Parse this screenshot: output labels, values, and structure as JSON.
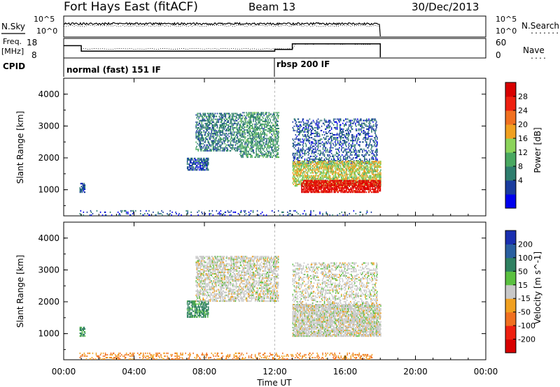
{
  "header": {
    "title": "Fort Hays East (fitACF)",
    "beam": "Beam 13",
    "date": "30/Dec/2013"
  },
  "nsky_panel": {
    "left_label": "N.Sky",
    "left_ticks": [
      "10^5",
      "10^0"
    ],
    "right_ticks": [
      "10^5",
      "10^0"
    ],
    "right_label": "N.Search",
    "right_label_line": "........"
  },
  "freq_panel": {
    "left_label_1": "Freq.",
    "left_label_2": "[MHz]",
    "left_ticks": [
      "18",
      "8"
    ],
    "right_ticks": [
      "60",
      "0"
    ],
    "right_label": "Nave",
    "right_label_line": "....",
    "freq_segments": [
      {
        "start_h": 0.0,
        "end_h": 1.0,
        "mhz": 14.5
      },
      {
        "start_h": 1.0,
        "end_h": 12.0,
        "mhz": 11.2
      },
      {
        "start_h": 12.0,
        "end_h": 13.0,
        "mhz": 12.3
      },
      {
        "start_h": 13.0,
        "end_h": 18.0,
        "mhz": 15.6
      }
    ]
  },
  "cpid": {
    "label": "CPID",
    "modes": [
      {
        "label": "normal (fast) 151 IF",
        "start_h": 0.0
      },
      {
        "label": "rbsp 200 IF",
        "start_h": 12.0
      }
    ]
  },
  "axes": {
    "ylabel": "Slant Range [km]",
    "yticks": [
      "4000",
      "3000",
      "2000",
      "1000"
    ],
    "xlabel": "Time UT",
    "xticks": [
      "00:00",
      "04:00",
      "08:00",
      "12:00",
      "16:00",
      "20:00",
      "00:00"
    ]
  },
  "power_colorbar": {
    "label": "Power [dB]",
    "ticks": [
      "28",
      "24",
      "20",
      "16",
      "12",
      "8",
      "4"
    ],
    "colors": [
      "#0000ee",
      "#1a3c9e",
      "#2e7d6e",
      "#49a861",
      "#8bd35a",
      "#f0a020",
      "#f07020",
      "#ee2010",
      "#d80000"
    ]
  },
  "velocity_colorbar": {
    "label": "Velocity [m s^-1]",
    "ticks": [
      "200",
      "100",
      "50",
      "15",
      "-15",
      "-50",
      "-100",
      "-200"
    ],
    "colors": [
      "#1a2fb0",
      "#2a5fa0",
      "#2e8060",
      "#5ac040",
      "#c8c8c8",
      "#f0a020",
      "#f07020",
      "#ee2010",
      "#d80000"
    ]
  },
  "chart_data": [
    {
      "type": "heatmap",
      "title": "Power",
      "xlabel": "Time UT",
      "ylabel": "Slant Range [km]",
      "xlim_hours": [
        0,
        24
      ],
      "ylim_km": [
        180,
        4500
      ],
      "colorbar_label": "Power [dB]",
      "clim_db": [
        0,
        30
      ],
      "regions": [
        {
          "t0": 0.9,
          "t1": 1.2,
          "r0": 900,
          "r1": 1200,
          "value_db": 6,
          "density": 0.7
        },
        {
          "t0": 7.0,
          "t1": 8.2,
          "r0": 1600,
          "r1": 2000,
          "value_db": 6,
          "density": 0.6
        },
        {
          "t0": 7.5,
          "t1": 10.0,
          "r0": 2200,
          "r1": 3400,
          "value_db": 8,
          "density": 0.45
        },
        {
          "t0": 10.0,
          "t1": 12.2,
          "r0": 2000,
          "r1": 3400,
          "value_db": 10,
          "density": 0.45
        },
        {
          "t0": 13.0,
          "t1": 17.8,
          "r0": 1800,
          "r1": 3200,
          "value_db": 6,
          "density": 0.3
        },
        {
          "t0": 13.0,
          "t1": 18.0,
          "r0": 1100,
          "r1": 1900,
          "value_db": 16,
          "density": 0.6
        },
        {
          "t0": 13.5,
          "t1": 18.0,
          "r0": 900,
          "r1": 1300,
          "value_db": 27,
          "density": 0.75
        },
        {
          "t0": 0.9,
          "t1": 17.5,
          "r0": 180,
          "r1": 320,
          "value_db": 5,
          "density": 0.12
        }
      ]
    },
    {
      "type": "heatmap",
      "title": "Velocity",
      "xlabel": "Time UT",
      "ylabel": "Slant Range [km]",
      "xlim_hours": [
        0,
        24
      ],
      "ylim_km": [
        180,
        4500
      ],
      "colorbar_label": "Velocity [m s^-1]",
      "clim_ms": [
        -250,
        250
      ],
      "regions": [
        {
          "t0": 0.9,
          "t1": 1.2,
          "r0": 900,
          "r1": 1200,
          "value_ms": 60,
          "density": 0.7
        },
        {
          "t0": 7.0,
          "t1": 8.2,
          "r0": 1500,
          "r1": 2000,
          "value_ms": 60,
          "density": 0.6
        },
        {
          "t0": 7.5,
          "t1": 12.2,
          "r0": 2000,
          "r1": 3400,
          "value_ms": 0,
          "density": 0.5
        },
        {
          "t0": 13.0,
          "t1": 17.8,
          "r0": 1800,
          "r1": 3200,
          "value_ms": 0,
          "density": 0.3
        },
        {
          "t0": 13.0,
          "t1": 18.0,
          "r0": 900,
          "r1": 1900,
          "value_ms": 0,
          "density": 0.7
        },
        {
          "t0": 0.9,
          "t1": 17.5,
          "r0": 180,
          "r1": 380,
          "value_ms": -50,
          "density": 0.22
        }
      ]
    }
  ]
}
